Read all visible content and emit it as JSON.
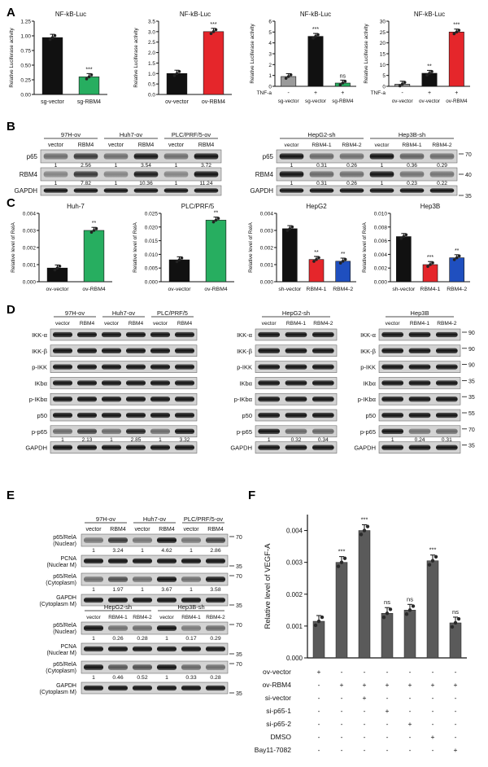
{
  "panels": {
    "A": "A",
    "B": "B",
    "C": "C",
    "D": "D",
    "E": "E",
    "F": "F"
  },
  "colors": {
    "black": "#111111",
    "green": "#27ae60",
    "red": "#e5262b",
    "gray": "#9a9a9a",
    "lightgreen": "#6fcf8a",
    "blue": "#1f4fbf",
    "darkgray": "#5a5a5a"
  },
  "panelA": {
    "ylabel": "Relative Luciferase activity",
    "charts": [
      {
        "title": "NF-kB-Luc",
        "type": "bar",
        "ylim": [
          0,
          1.25
        ],
        "ticks": [
          "0.00",
          "0.25",
          "0.50",
          "0.75",
          "1.00",
          "1.25"
        ],
        "categories": [
          "sg-vector",
          "sg-RBM4"
        ],
        "values": [
          0.97,
          0.3
        ],
        "colors": [
          "#111111",
          "#27ae60"
        ],
        "sig": [
          "",
          "***"
        ]
      },
      {
        "title": "NF-kB-Luc",
        "type": "bar",
        "ylim": [
          0,
          3.5
        ],
        "ticks": [
          "0.0",
          "0.5",
          "1.0",
          "1.5",
          "2.0",
          "2.5",
          "3.0",
          "3.5"
        ],
        "categories": [
          "ov-vector",
          "ov-RBM4"
        ],
        "values": [
          1.0,
          3.0
        ],
        "colors": [
          "#111111",
          "#e5262b"
        ],
        "sig": [
          "",
          "***"
        ]
      },
      {
        "title": "NF-kB-Luc",
        "type": "bar",
        "ylim": [
          0,
          6
        ],
        "ticks": [
          "0",
          "1",
          "2",
          "3",
          "4",
          "5",
          "6"
        ],
        "categories": [
          "sg-vector",
          "sg-vector",
          "sg-RBM4"
        ],
        "values": [
          0.9,
          4.6,
          0.3
        ],
        "colors": [
          "#9a9a9a",
          "#111111",
          "#27ae60"
        ],
        "sig": [
          "",
          "***",
          "ns"
        ],
        "treat_label": "TNF-a",
        "treat": [
          "-",
          "+",
          "+"
        ]
      },
      {
        "title": "NF-kB-Luc",
        "type": "bar",
        "ylim": [
          0,
          30
        ],
        "ticks": [
          "0",
          "5",
          "10",
          "15",
          "20",
          "25",
          "30"
        ],
        "categories": [
          "ov-vector",
          "ov-vector",
          "ov-RBM4"
        ],
        "values": [
          1.0,
          6.0,
          25.0
        ],
        "colors": [
          "#9a9a9a",
          "#111111",
          "#e5262b"
        ],
        "sig": [
          "",
          "**",
          "***"
        ],
        "treat_label": "TNF-a",
        "treat": [
          "-",
          "+",
          "+"
        ]
      }
    ]
  },
  "panelB": {
    "groups_left": [
      "97H-ov",
      "Huh7-ov",
      "PLC/PRF/5-ov"
    ],
    "groups_right": [
      "HepG2-sh",
      "Hep3B-sh"
    ],
    "lanes_left": [
      "vector",
      "RBM4",
      "vector",
      "RBM4",
      "vector",
      "RBM4"
    ],
    "lanes_right": [
      "vector",
      "RBM4-1",
      "RBM4-2",
      "vector",
      "RBM4-1",
      "RBM4-2"
    ],
    "rows": [
      "p65",
      "RBM4",
      "GAPDH"
    ],
    "p65_left": [
      "1",
      "2.56",
      "1",
      "3.54",
      "1",
      "3.72"
    ],
    "rbm4_left": [
      "1",
      "7.82",
      "1",
      "10.36",
      "1",
      "11.24"
    ],
    "p65_right": [
      "1",
      "0.31",
      "0.26",
      "1",
      "0.36",
      "0.29"
    ],
    "rbm4_right": [
      "1",
      "0.31",
      "0.26",
      "1",
      "0.23",
      "0.22"
    ],
    "markers": [
      "70",
      "40",
      "35"
    ]
  },
  "panelC": {
    "ylabel": "Relative level of RelA",
    "charts": [
      {
        "title": "Huh-7",
        "ylim": [
          0,
          0.004
        ],
        "ticks": [
          "0.000",
          "0.001",
          "0.002",
          "0.003",
          "0.004"
        ],
        "categories": [
          "ov-vector",
          "ov-RBM4"
        ],
        "values": [
          0.0008,
          0.003
        ],
        "colors": [
          "#111111",
          "#27ae60"
        ],
        "sig": [
          "",
          "**"
        ]
      },
      {
        "title": "PLC/PRF/5",
        "ylim": [
          0,
          0.025
        ],
        "ticks": [
          "0.000",
          "0.005",
          "0.010",
          "0.015",
          "0.020",
          "0.025"
        ],
        "categories": [
          "ov-vector",
          "ov-RBM4"
        ],
        "values": [
          0.008,
          0.0225
        ],
        "colors": [
          "#111111",
          "#27ae60"
        ],
        "sig": [
          "",
          "**"
        ]
      },
      {
        "title": "HepG2",
        "ylim": [
          0,
          0.004
        ],
        "ticks": [
          "0.000",
          "0.001",
          "0.002",
          "0.003",
          "0.004"
        ],
        "categories": [
          "sh-vector",
          "RBM4-1",
          "RBM4-2"
        ],
        "values": [
          0.0031,
          0.0013,
          0.0012
        ],
        "colors": [
          "#111111",
          "#e5262b",
          "#1f4fbf"
        ],
        "sig": [
          "",
          "**",
          "**"
        ]
      },
      {
        "title": "Hep3B",
        "ylim": [
          0,
          0.01
        ],
        "ticks": [
          "0.000",
          "0.002",
          "0.004",
          "0.006",
          "0.008",
          "0.010"
        ],
        "categories": [
          "sh-vector",
          "RBM4-1",
          "RBM4-2"
        ],
        "values": [
          0.0066,
          0.0025,
          0.0035
        ],
        "colors": [
          "#111111",
          "#e5262b",
          "#1f4fbf"
        ],
        "sig": [
          "",
          "***",
          "**"
        ]
      }
    ]
  },
  "panelD": {
    "groups1": [
      "97H-ov",
      "Huh7-ov",
      "PLC/PRF/5"
    ],
    "lanes1": [
      "vector",
      "RBM4",
      "vector",
      "RBM4",
      "vector",
      "RBM4"
    ],
    "group2": "HepG2-sh",
    "lanes2": [
      "vector",
      "RBM4-1",
      "RBM4-2"
    ],
    "group3": "Hep3B",
    "lanes3": [
      "vector",
      "RBM4-1",
      "RBM4-2"
    ],
    "rows": [
      "IKK-α",
      "IKK-β",
      "p-IKK",
      "IKbα",
      "p-IKbα",
      "p50",
      "p-p65",
      "GAPDH"
    ],
    "pp65_1": [
      "1",
      "2.13",
      "1",
      "2.85",
      "1",
      "3.32"
    ],
    "pp65_2": [
      "1",
      "0.32",
      "0.34"
    ],
    "pp65_3": [
      "1",
      "0.24",
      "0.31"
    ],
    "markers": [
      "90",
      "90",
      "90",
      "35",
      "35",
      "55",
      "70",
      "35"
    ]
  },
  "panelE": {
    "groups_top": [
      "97H-ov",
      "Huh7-ov",
      "PLC/PRF/5-ov"
    ],
    "lanes_top": [
      "vector",
      "RBM4",
      "vector",
      "RBM4",
      "vector",
      "RBM4"
    ],
    "rows_top": [
      "p65/RelA\n(Nuclear)",
      "PCNA\n(Nuclear M)",
      "p65/RelA\n(Cytoplasm)",
      "GAPDH\n(Cytoplasm M)"
    ],
    "nuc_top": [
      "1",
      "3.24",
      "1",
      "4.62",
      "1",
      "2.86"
    ],
    "cyt_top": [
      "1",
      "1.97",
      "1",
      "3.67",
      "1",
      "3.58"
    ],
    "groups_bot": [
      "HepG2-sh",
      "Hep3B-sh"
    ],
    "lanes_bot": [
      "vector",
      "RBM4-1",
      "RBM4-2",
      "vector",
      "RBM4-1",
      "RBM4-2"
    ],
    "nuc_bot": [
      "1",
      "0.26",
      "0.28",
      "1",
      "0.17",
      "0.29"
    ],
    "cyt_bot": [
      "1",
      "0.46",
      "0.52",
      "1",
      "0.33",
      "0.28"
    ],
    "markers": [
      "70",
      "35",
      "70",
      "35"
    ]
  },
  "chart_data": {
    "type": "bar",
    "title": "",
    "ylabel": "Relative level of VEGF-A",
    "ylim": [
      0,
      0.0045
    ],
    "ticks": [
      "0.000",
      "0.001",
      "0.002",
      "0.003",
      "0.004"
    ],
    "categories": [
      "1",
      "2",
      "3",
      "4",
      "5",
      "6",
      "7"
    ],
    "values": [
      0.00115,
      0.003,
      0.004,
      0.0014,
      0.0015,
      0.00305,
      0.0011
    ],
    "sig": [
      "",
      "***",
      "***",
      "ns",
      "ns",
      "***",
      "ns"
    ],
    "rows": [
      {
        "label": "ov-vector",
        "marks": [
          "+",
          "-",
          "-",
          "-",
          "-",
          "-",
          "-"
        ]
      },
      {
        "label": "ov-RBM4",
        "marks": [
          "-",
          "+",
          "+",
          "+",
          "+",
          "+",
          "+"
        ]
      },
      {
        "label": "si-vector",
        "marks": [
          "-",
          "-",
          "+",
          "-",
          "-",
          "-",
          "-"
        ]
      },
      {
        "label": "si-p65-1",
        "marks": [
          "-",
          "-",
          "-",
          "+",
          "-",
          "-",
          "-"
        ]
      },
      {
        "label": "si-p65-2",
        "marks": [
          "-",
          "-",
          "-",
          "-",
          "+",
          "-",
          "-"
        ]
      },
      {
        "label": "DMSO",
        "marks": [
          "-",
          "-",
          "-",
          "-",
          "-",
          "+",
          "-"
        ]
      },
      {
        "label": "Bay11-7082",
        "marks": [
          "-",
          "-",
          "-",
          "-",
          "-",
          "-",
          "+"
        ]
      }
    ]
  }
}
